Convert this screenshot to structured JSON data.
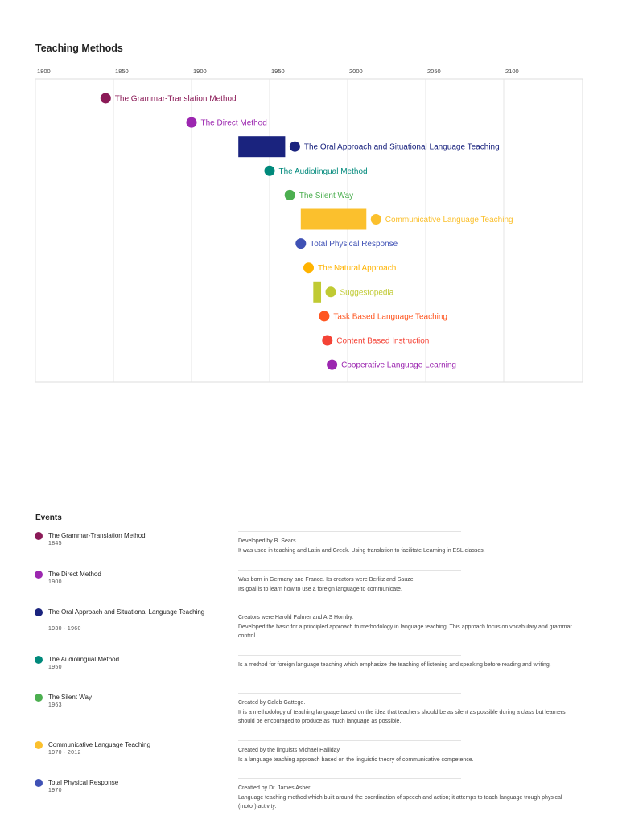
{
  "title": "Teaching Methods",
  "events_title": "Events",
  "chart_data": {
    "type": "timeline",
    "title": "Teaching Methods",
    "axis": {
      "min": 1800,
      "max": 2150,
      "ticks": [
        1800,
        1850,
        1900,
        1950,
        2000,
        2050,
        2100
      ],
      "grid": true
    },
    "items": [
      {
        "label": "The Grammar-Translation Method",
        "color": "#8b1a57",
        "start": 1845,
        "end": null
      },
      {
        "label": "The Direct Method",
        "color": "#9c27b0",
        "start": 1900,
        "end": null
      },
      {
        "label": "The Oral Approach and Situational Language Teaching",
        "color": "#1a237e",
        "start": 1930,
        "end": 1960
      },
      {
        "label": "The Audiolingual Method",
        "color": "#00897b",
        "start": 1950,
        "end": null
      },
      {
        "label": "The Silent Way",
        "color": "#4caf50",
        "start": 1963,
        "end": null
      },
      {
        "label": "Communicative Language Teaching",
        "color": "#fbc02d",
        "start": 1970,
        "end": 2012
      },
      {
        "label": "Total Physical Response",
        "color": "#3f51b5",
        "start": 1970,
        "end": null
      },
      {
        "label": "The Natural Approach",
        "color": "#ffb300",
        "start": 1975,
        "end": null
      },
      {
        "label": "Suggestopedia",
        "color": "#c0ca33",
        "start": 1978,
        "end": 1983
      },
      {
        "label": "Task Based Language Teaching",
        "color": "#ff5722",
        "start": 1985,
        "end": null
      },
      {
        "label": "Content Based Instruction",
        "color": "#f44336",
        "start": 1987,
        "end": null
      },
      {
        "label": "Cooperative Language Learning",
        "color": "#9c27b0",
        "start": 1990,
        "end": null
      }
    ]
  },
  "events": [
    {
      "name": "The Grammar-Translation Method",
      "years": "1845",
      "color": "#8b1a57",
      "lines": [
        "Developed by B. Sears",
        "It was used in teaching and Latin and Greek. Using translation to facilitate Learning in ESL classes."
      ]
    },
    {
      "name": "The Direct Method",
      "years": "1900",
      "color": "#9c27b0",
      "lines": [
        "Was born in Germany and France. Its creators were Berlitz and Sauze.",
        "Its goal is to learn how to use a foreign language to communicate."
      ]
    },
    {
      "name": "The Oral Approach and Situational Language Teaching",
      "years": "1930 - 1960",
      "color": "#1a237e",
      "lines": [
        "Creators were Harold Palmer and A.S Hornby.",
        "Developed the basic for a principled approach to methodology in language teaching. This approach focus on vocabulary and grammar control."
      ]
    },
    {
      "name": "The Audiolingual Method",
      "years": "1950",
      "color": "#00897b",
      "lines": [
        "Is a method for foreign language teaching which emphasize the teaching of listening and speaking before reading and writing."
      ]
    },
    {
      "name": "The Silent Way",
      "years": "1963",
      "color": "#4caf50",
      "lines": [
        "Created by Caleb Gattege.",
        "It is a methodology of teaching language based on the idea that teachers should be as silent as possible during a class but learners should be encouraged to produce as much language as possible."
      ]
    },
    {
      "name": "Communicative Language Teaching",
      "years": "1970 - 2012",
      "color": "#fbc02d",
      "lines": [
        "Created by the linguists Michael Halliday.",
        "Is a language teaching approach based on the linguistic theory of communicative competence."
      ]
    },
    {
      "name": "Total Physical Response",
      "years": "1970",
      "color": "#3f51b5",
      "lines": [
        "Creatted by Dr. James Asher",
        "Language teaching method which built around the coordination of speech and action; it attemps to teach language trough physical (motor) activity."
      ]
    }
  ]
}
